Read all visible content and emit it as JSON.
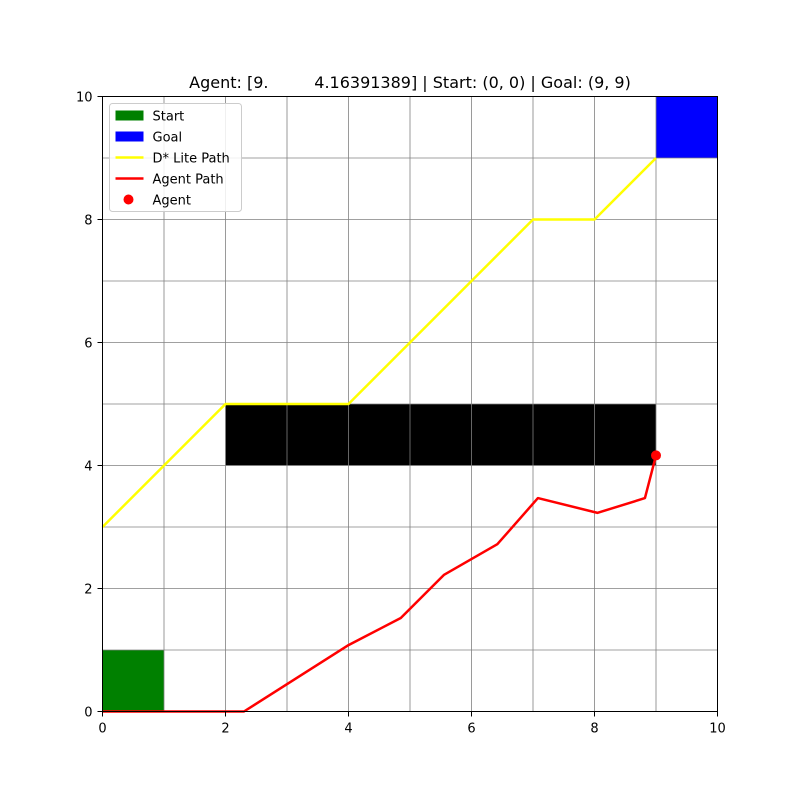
{
  "chart_data": {
    "type": "line",
    "title": "Agent: [9.         4.16391389] | Start: (0, 0) | Goal: (9, 9)",
    "xlabel": "",
    "ylabel": "",
    "xlim": [
      0,
      10
    ],
    "ylim": [
      0,
      10
    ],
    "xticks": [
      0,
      2,
      4,
      6,
      8,
      10
    ],
    "yticks": [
      0,
      2,
      4,
      6,
      8,
      10
    ],
    "grid": true,
    "grid_step": 1,
    "legend_position": "top-left",
    "cells": [
      {
        "name": "Start",
        "x": 0,
        "y": 0,
        "w": 1,
        "h": 1,
        "color": "#008000"
      },
      {
        "name": "Goal",
        "x": 9,
        "y": 9,
        "w": 1,
        "h": 1,
        "color": "#0000ff"
      },
      {
        "name": "Obstacle",
        "x": 2,
        "y": 4,
        "w": 7,
        "h": 1,
        "color": "#000000"
      }
    ],
    "series": [
      {
        "name": "D* Lite Path",
        "color": "#ffff00",
        "x": [
          0,
          2,
          4,
          7,
          8,
          9
        ],
        "y": [
          3,
          5,
          5,
          8,
          8,
          9
        ]
      },
      {
        "name": "Agent Path",
        "color": "#ff0000",
        "x": [
          0,
          2.3,
          4,
          4.85,
          5.55,
          6.42,
          7.08,
          8.05,
          8.82,
          9.0
        ],
        "y": [
          0,
          0,
          1.08,
          1.52,
          2.22,
          2.72,
          3.47,
          3.23,
          3.47,
          4.16391389
        ]
      }
    ],
    "agent": {
      "name": "Agent",
      "x": 9.0,
      "y": 4.16391389,
      "color": "#ff0000"
    },
    "legend": [
      {
        "label": "Start",
        "kind": "patch",
        "color": "#008000"
      },
      {
        "label": "Goal",
        "kind": "patch",
        "color": "#0000ff"
      },
      {
        "label": "D* Lite Path",
        "kind": "line",
        "color": "#ffff00"
      },
      {
        "label": "Agent Path",
        "kind": "line",
        "color": "#ff0000"
      },
      {
        "label": "Agent",
        "kind": "marker",
        "color": "#ff0000"
      }
    ]
  }
}
